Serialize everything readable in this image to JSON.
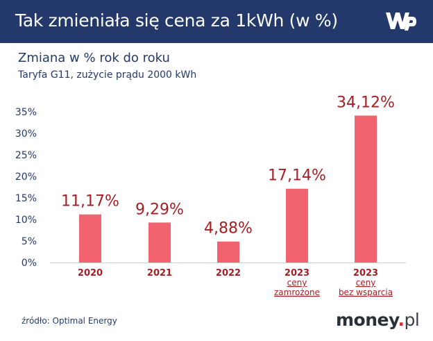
{
  "header": {
    "title": "Tak zmieniała się cena za 1kWh (w %)",
    "logo_icon": "wp-logo-icon"
  },
  "subtitle": "Zmiana w % rok do roku",
  "subsubtitle": "Taryfa G11, zużycie prądu 2000 kWh",
  "footer": {
    "source": "źródło: Optimal Energy",
    "brand_main": "money",
    "brand_dot": ".",
    "brand_tld": "pl"
  },
  "colors": {
    "header_bg": "#23386b",
    "bar": "#f0636f",
    "value_label": "#a51e23",
    "category_label": "#a51e23",
    "axis_text": "#23386b",
    "brand_dot": "#e2262f"
  },
  "chart_data": {
    "type": "bar",
    "categories": [
      [
        "2020"
      ],
      [
        "2021"
      ],
      [
        "2022"
      ],
      [
        "2023",
        "ceny",
        "zamrożone"
      ],
      [
        "2023",
        "ceny",
        "bez wsparcia"
      ]
    ],
    "values": [
      11.17,
      9.29,
      4.88,
      17.14,
      34.12
    ],
    "value_labels": [
      "11,17%",
      "9,29%",
      "4,88%",
      "17,14%",
      "34,12%"
    ],
    "yticks": [
      "0%",
      "5%",
      "10%",
      "15%",
      "20%",
      "25%",
      "30%",
      "35%"
    ],
    "ylim": [
      0,
      35
    ],
    "grid": false
  }
}
